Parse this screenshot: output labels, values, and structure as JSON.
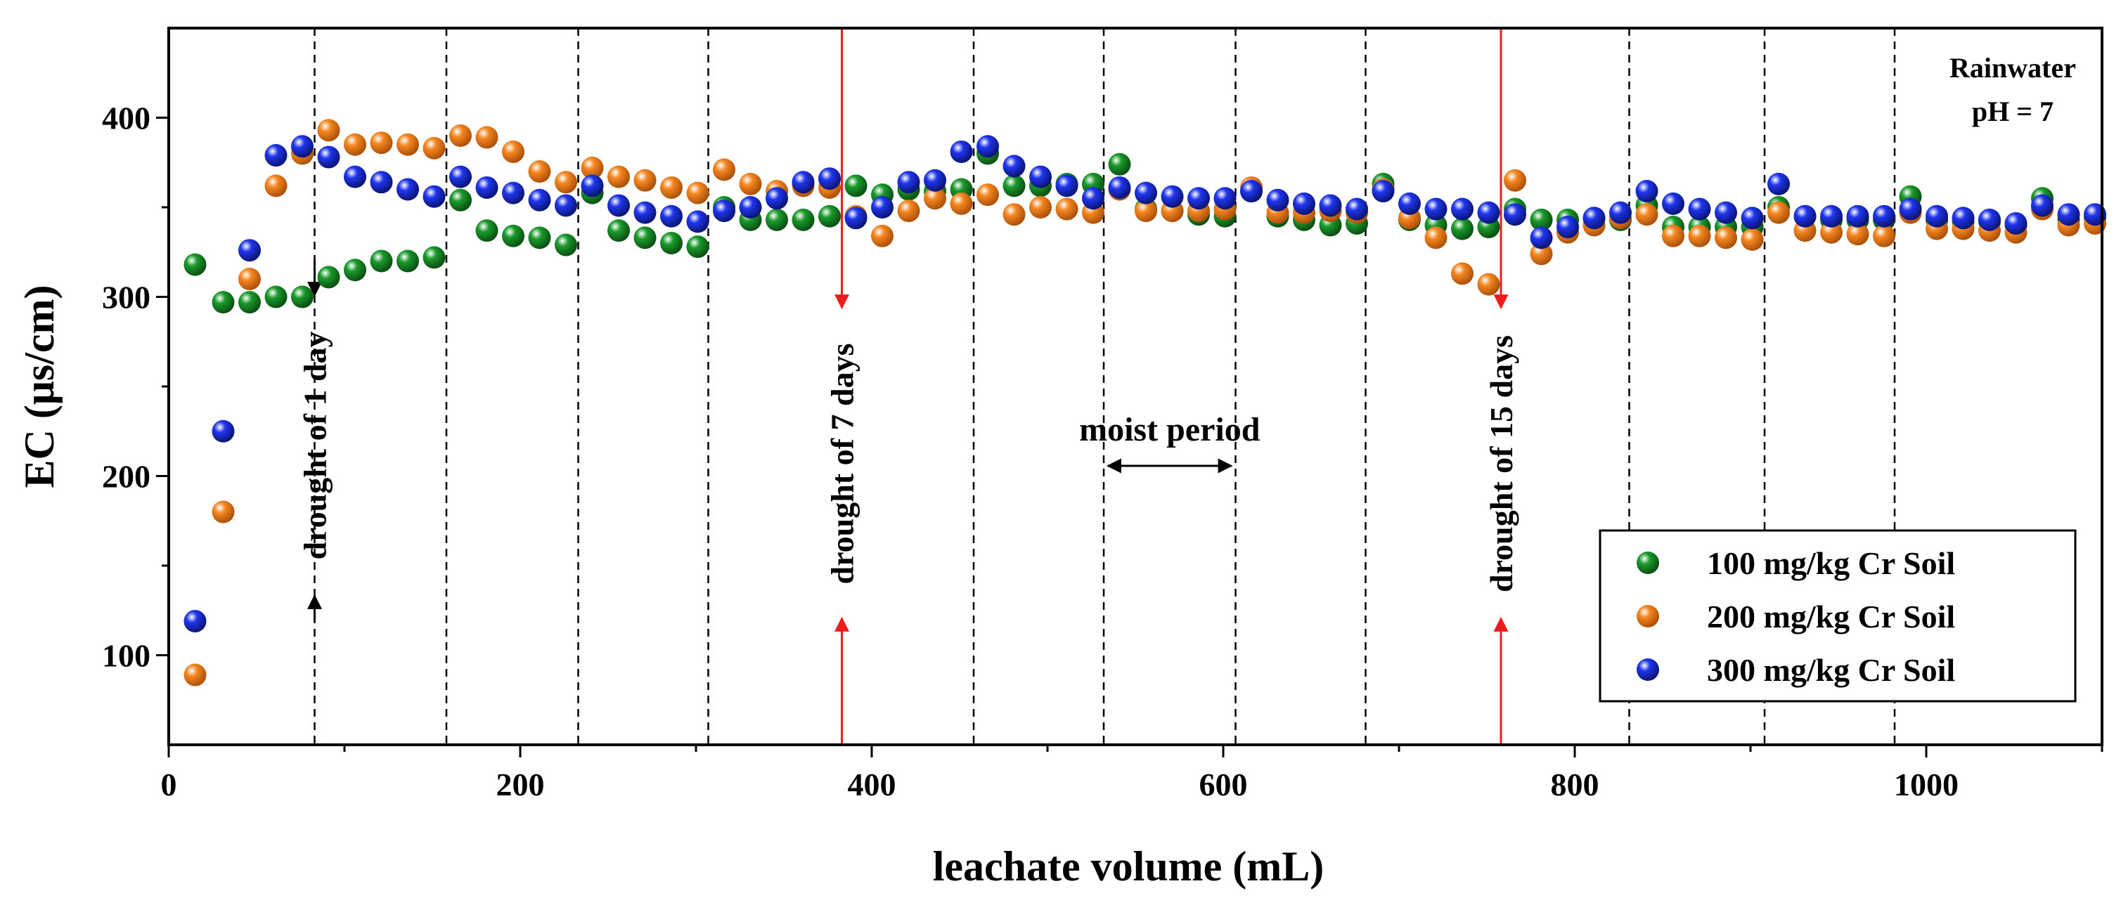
{
  "chart_data": {
    "type": "scatter",
    "xlabel": "leachate volume (mL)",
    "ylabel": "EC (μs/cm)",
    "xlim": [
      0,
      1100
    ],
    "ylim": [
      50,
      450
    ],
    "xticks": [
      0,
      200,
      400,
      600,
      800,
      1000
    ],
    "yticks": [
      100,
      200,
      300,
      400
    ],
    "xtick_labels": [
      "0",
      "200",
      "400",
      "600",
      "800",
      "1000"
    ],
    "ytick_labels": [
      "100",
      "200",
      "300",
      "400"
    ],
    "grid": false,
    "legend_position": "bottom-right",
    "note_lines": [
      "Rainwater",
      "pH = 7"
    ],
    "vlines_x": [
      83,
      158,
      233,
      307,
      458,
      532,
      607,
      681,
      831,
      908,
      982
    ],
    "drought_markers": [
      {
        "x": 83,
        "label": "drought of 1 day",
        "color": "#000000",
        "style": "short-arrows"
      },
      {
        "x": 383,
        "label": "drought of 7 days",
        "color": "#ee1c1c",
        "style": "full-arrows"
      },
      {
        "x": 758,
        "label": "drought of 15 days",
        "color": "#ee1c1c",
        "style": "full-arrows"
      }
    ],
    "moist_period": {
      "label": "moist period",
      "x_start": 532,
      "x_end": 607
    },
    "series": [
      {
        "name": "100 mg/kg Cr Soil",
        "color": "#1a9a2b",
        "points": [
          [
            15,
            318
          ],
          [
            31,
            297
          ],
          [
            46,
            297
          ],
          [
            61,
            300
          ],
          [
            76,
            300
          ],
          [
            91,
            311
          ],
          [
            106,
            315
          ],
          [
            121,
            320
          ],
          [
            136,
            320
          ],
          [
            151,
            322
          ],
          [
            166,
            354
          ],
          [
            181,
            337
          ],
          [
            196,
            334
          ],
          [
            211,
            333
          ],
          [
            226,
            329
          ],
          [
            241,
            358
          ],
          [
            256,
            337
          ],
          [
            271,
            333
          ],
          [
            286,
            330
          ],
          [
            301,
            328
          ],
          [
            316,
            350
          ],
          [
            331,
            343
          ],
          [
            346,
            343
          ],
          [
            361,
            343
          ],
          [
            376,
            345
          ],
          [
            391,
            362
          ],
          [
            406,
            357
          ],
          [
            421,
            360
          ],
          [
            436,
            359
          ],
          [
            451,
            360
          ],
          [
            466,
            380
          ],
          [
            481,
            362
          ],
          [
            496,
            362
          ],
          [
            511,
            363
          ],
          [
            526,
            363
          ],
          [
            541,
            374
          ],
          [
            556,
            349
          ],
          [
            571,
            348
          ],
          [
            586,
            346
          ],
          [
            601,
            345
          ],
          [
            616,
            359
          ],
          [
            631,
            345
          ],
          [
            646,
            343
          ],
          [
            661,
            340
          ],
          [
            676,
            341
          ],
          [
            691,
            363
          ],
          [
            706,
            343
          ],
          [
            721,
            340
          ],
          [
            736,
            338
          ],
          [
            751,
            339
          ],
          [
            766,
            349
          ],
          [
            781,
            343
          ],
          [
            796,
            343
          ],
          [
            811,
            344
          ],
          [
            826,
            343
          ],
          [
            841,
            351
          ],
          [
            856,
            339
          ],
          [
            871,
            339
          ],
          [
            886,
            339
          ],
          [
            901,
            339
          ],
          [
            916,
            350
          ],
          [
            931,
            345
          ],
          [
            946,
            343
          ],
          [
            961,
            343
          ],
          [
            976,
            343
          ],
          [
            991,
            356
          ],
          [
            1006,
            343
          ],
          [
            1021,
            342
          ],
          [
            1036,
            342
          ],
          [
            1051,
            340
          ],
          [
            1066,
            355
          ],
          [
            1081,
            343
          ],
          [
            1096,
            344
          ]
        ]
      },
      {
        "name": "200 mg/kg Cr Soil",
        "color": "#f5861f",
        "points": [
          [
            15,
            89
          ],
          [
            31,
            180
          ],
          [
            46,
            310
          ],
          [
            61,
            362
          ],
          [
            76,
            380
          ],
          [
            91,
            393
          ],
          [
            106,
            385
          ],
          [
            121,
            386
          ],
          [
            136,
            385
          ],
          [
            151,
            383
          ],
          [
            166,
            390
          ],
          [
            181,
            389
          ],
          [
            196,
            381
          ],
          [
            211,
            370
          ],
          [
            226,
            364
          ],
          [
            241,
            372
          ],
          [
            256,
            367
          ],
          [
            271,
            365
          ],
          [
            286,
            361
          ],
          [
            301,
            358
          ],
          [
            316,
            371
          ],
          [
            331,
            363
          ],
          [
            346,
            359
          ],
          [
            361,
            362
          ],
          [
            376,
            361
          ],
          [
            391,
            345
          ],
          [
            406,
            334
          ],
          [
            421,
            348
          ],
          [
            436,
            355
          ],
          [
            451,
            352
          ],
          [
            466,
            357
          ],
          [
            481,
            346
          ],
          [
            496,
            350
          ],
          [
            511,
            349
          ],
          [
            526,
            347
          ],
          [
            541,
            360
          ],
          [
            556,
            348
          ],
          [
            571,
            348
          ],
          [
            586,
            348
          ],
          [
            601,
            349
          ],
          [
            616,
            361
          ],
          [
            631,
            347
          ],
          [
            646,
            347
          ],
          [
            661,
            348
          ],
          [
            676,
            347
          ],
          [
            691,
            360
          ],
          [
            706,
            344
          ],
          [
            721,
            333
          ],
          [
            736,
            313
          ],
          [
            751,
            307
          ],
          [
            766,
            365
          ],
          [
            781,
            324
          ],
          [
            796,
            336
          ],
          [
            811,
            340
          ],
          [
            826,
            344
          ],
          [
            841,
            346
          ],
          [
            856,
            334
          ],
          [
            871,
            334
          ],
          [
            886,
            333
          ],
          [
            901,
            332
          ],
          [
            916,
            347
          ],
          [
            931,
            337
          ],
          [
            946,
            336
          ],
          [
            961,
            335
          ],
          [
            976,
            334
          ],
          [
            991,
            347
          ],
          [
            1006,
            338
          ],
          [
            1021,
            338
          ],
          [
            1036,
            337
          ],
          [
            1051,
            336
          ],
          [
            1066,
            349
          ],
          [
            1081,
            340
          ],
          [
            1096,
            341
          ]
        ]
      },
      {
        "name": "300 mg/kg Cr Soil",
        "color": "#1f35ee",
        "points": [
          [
            15,
            119
          ],
          [
            31,
            225
          ],
          [
            46,
            326
          ],
          [
            61,
            379
          ],
          [
            76,
            384
          ],
          [
            91,
            378
          ],
          [
            106,
            367
          ],
          [
            121,
            364
          ],
          [
            136,
            360
          ],
          [
            151,
            356
          ],
          [
            166,
            367
          ],
          [
            181,
            361
          ],
          [
            196,
            358
          ],
          [
            211,
            354
          ],
          [
            226,
            351
          ],
          [
            241,
            362
          ],
          [
            256,
            351
          ],
          [
            271,
            347
          ],
          [
            286,
            345
          ],
          [
            301,
            342
          ],
          [
            316,
            348
          ],
          [
            331,
            350
          ],
          [
            346,
            355
          ],
          [
            361,
            364
          ],
          [
            376,
            366
          ],
          [
            391,
            344
          ],
          [
            406,
            350
          ],
          [
            421,
            364
          ],
          [
            436,
            365
          ],
          [
            451,
            381
          ],
          [
            466,
            384
          ],
          [
            481,
            373
          ],
          [
            496,
            367
          ],
          [
            511,
            362
          ],
          [
            526,
            355
          ],
          [
            541,
            361
          ],
          [
            556,
            358
          ],
          [
            571,
            356
          ],
          [
            586,
            355
          ],
          [
            601,
            355
          ],
          [
            616,
            359
          ],
          [
            631,
            354
          ],
          [
            646,
            352
          ],
          [
            661,
            351
          ],
          [
            676,
            349
          ],
          [
            691,
            359
          ],
          [
            706,
            352
          ],
          [
            721,
            349
          ],
          [
            736,
            349
          ],
          [
            751,
            347
          ],
          [
            766,
            346
          ],
          [
            781,
            333
          ],
          [
            796,
            339
          ],
          [
            811,
            344
          ],
          [
            826,
            347
          ],
          [
            841,
            359
          ],
          [
            856,
            352
          ],
          [
            871,
            349
          ],
          [
            886,
            347
          ],
          [
            901,
            344
          ],
          [
            916,
            363
          ],
          [
            931,
            345
          ],
          [
            946,
            345
          ],
          [
            961,
            345
          ],
          [
            976,
            345
          ],
          [
            991,
            349
          ],
          [
            1006,
            345
          ],
          [
            1021,
            344
          ],
          [
            1036,
            343
          ],
          [
            1051,
            341
          ],
          [
            1066,
            351
          ],
          [
            1081,
            346
          ],
          [
            1096,
            346
          ]
        ]
      }
    ]
  }
}
